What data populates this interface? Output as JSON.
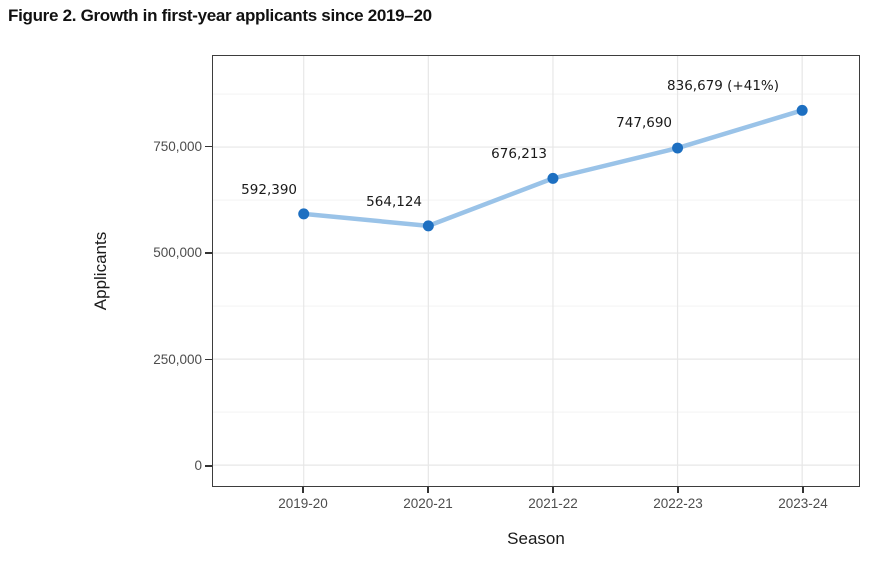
{
  "figure": {
    "title": "Figure 2. Growth in first-year applicants since 2019–20"
  },
  "chart_data": {
    "type": "line",
    "title": "Figure 2. Growth in first-year applicants since 2019–20",
    "xlabel": "Season",
    "ylabel": "Applicants",
    "categories": [
      "2019-20",
      "2020-21",
      "2021-22",
      "2022-23",
      "2023-24"
    ],
    "series": [
      {
        "name": "First-year applicants",
        "values": [
          592390,
          564124,
          676213,
          747690,
          836679
        ]
      }
    ],
    "point_labels": [
      "592,390",
      "564,124",
      "676,213",
      "747,690",
      "836,679 (+41%)"
    ],
    "y_ticks": [
      {
        "value": 0,
        "label": "0"
      },
      {
        "value": 250000,
        "label": "250,000"
      },
      {
        "value": 500000,
        "label": "500,000"
      },
      {
        "value": 750000,
        "label": "750,000"
      }
    ],
    "y_minor_ticks": [
      125000,
      375000,
      625000,
      875000
    ],
    "ylim": [
      -55000,
      970000
    ],
    "grid": "major+minor",
    "legend": "none",
    "colors": {
      "line": "#9ac3e8",
      "point": "#1d6fc1",
      "grid_major": "#e7e7e7",
      "grid_minor": "#f3f3f3",
      "panel_border": "#3d3d3d",
      "axis_tick": "#333333",
      "tick_label": "#4d4d4d",
      "label_text": "#1a1a1a",
      "background": "#ffffff"
    }
  }
}
